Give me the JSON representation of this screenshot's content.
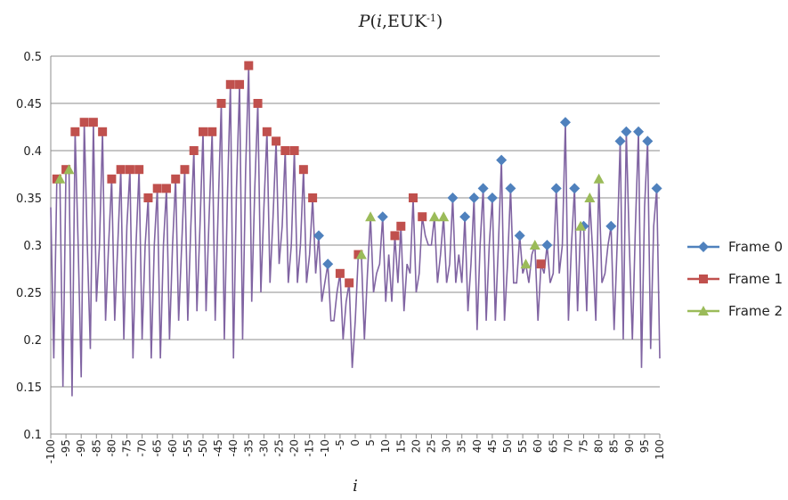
{
  "chart_data": {
    "type": "line",
    "title": [
      "P",
      "(",
      "i",
      ",EUK",
      "-1",
      ")"
    ],
    "x_label": "i",
    "xlim": [
      -100,
      100
    ],
    "xticks": [
      -100,
      -95,
      -90,
      -85,
      -80,
      -75,
      -70,
      -65,
      -60,
      -55,
      -50,
      -45,
      -40,
      -35,
      -30,
      -25,
      -20,
      -15,
      -10,
      -5,
      0,
      5,
      10,
      15,
      20,
      25,
      30,
      35,
      40,
      45,
      50,
      55,
      60,
      65,
      70,
      75,
      80,
      85,
      90,
      95,
      100
    ],
    "ylim": [
      0.1,
      0.5
    ],
    "yticks": [
      0.1,
      0.15,
      0.2,
      0.25,
      0.3,
      0.35,
      0.4,
      0.45,
      0.5
    ],
    "grid": true,
    "legend": "right",
    "series": [
      {
        "color": "#8064a2",
        "line": true,
        "x": [
          -100,
          -99,
          -98,
          -97,
          -96,
          -95,
          -94,
          -93,
          -92,
          -91,
          -90,
          -89,
          -88,
          -87,
          -86,
          -85,
          -84,
          -83,
          -82,
          -81,
          -80,
          -79,
          -78,
          -77,
          -76,
          -75,
          -74,
          -73,
          -72,
          -71,
          -70,
          -69,
          -68,
          -67,
          -66,
          -65,
          -64,
          -63,
          -62,
          -61,
          -60,
          -59,
          -58,
          -57,
          -56,
          -55,
          -54,
          -53,
          -52,
          -51,
          -50,
          -49,
          -48,
          -47,
          -46,
          -45,
          -44,
          -43,
          -42,
          -41,
          -40,
          -39,
          -38,
          -37,
          -36,
          -35,
          -34,
          -33,
          -32,
          -31,
          -30,
          -29,
          -28,
          -27,
          -26,
          -25,
          -24,
          -23,
          -22,
          -21,
          -20,
          -19,
          -18,
          -17,
          -16,
          -15,
          -14,
          -13,
          -12,
          -11,
          -10,
          -9,
          -8,
          -7,
          -6,
          -5,
          -4,
          -3,
          -2,
          -1,
          0,
          1,
          2,
          3,
          4,
          5,
          6,
          7,
          8,
          9,
          10,
          11,
          12,
          13,
          14,
          15,
          16,
          17,
          18,
          19,
          20,
          21,
          22,
          23,
          24,
          25,
          26,
          27,
          28,
          29,
          30,
          31,
          32,
          33,
          34,
          35,
          36,
          37,
          38,
          39,
          40,
          41,
          42,
          43,
          44,
          45,
          46,
          47,
          48,
          49,
          50,
          51,
          52,
          53,
          54,
          55,
          56,
          57,
          58,
          59,
          60,
          61,
          62,
          63,
          64,
          65,
          66,
          67,
          68,
          69,
          70,
          71,
          72,
          73,
          74,
          75,
          76,
          77,
          78,
          79,
          80,
          81,
          82,
          83,
          84,
          85,
          86,
          87,
          88,
          89,
          90,
          91,
          92,
          93,
          94,
          95,
          96,
          97,
          98,
          99,
          100
        ],
        "values": [
          0.34,
          0.18,
          0.37,
          0.37,
          0.15,
          0.38,
          0.38,
          0.14,
          0.42,
          0.3,
          0.16,
          0.43,
          0.3,
          0.19,
          0.43,
          0.24,
          0.3,
          0.42,
          0.22,
          0.3,
          0.37,
          0.22,
          0.3,
          0.38,
          0.2,
          0.32,
          0.38,
          0.18,
          0.3,
          0.38,
          0.2,
          0.3,
          0.35,
          0.18,
          0.3,
          0.36,
          0.18,
          0.3,
          0.36,
          0.2,
          0.3,
          0.37,
          0.22,
          0.3,
          0.38,
          0.22,
          0.32,
          0.4,
          0.23,
          0.32,
          0.42,
          0.23,
          0.33,
          0.42,
          0.22,
          0.34,
          0.45,
          0.2,
          0.35,
          0.47,
          0.18,
          0.36,
          0.47,
          0.2,
          0.38,
          0.49,
          0.24,
          0.36,
          0.45,
          0.25,
          0.34,
          0.42,
          0.26,
          0.33,
          0.41,
          0.28,
          0.32,
          0.4,
          0.26,
          0.3,
          0.4,
          0.26,
          0.3,
          0.38,
          0.26,
          0.29,
          0.35,
          0.27,
          0.31,
          0.24,
          0.26,
          0.28,
          0.22,
          0.22,
          0.25,
          0.27,
          0.2,
          0.24,
          0.26,
          0.17,
          0.22,
          0.29,
          0.29,
          0.2,
          0.27,
          0.33,
          0.25,
          0.27,
          0.28,
          0.33,
          0.24,
          0.29,
          0.24,
          0.31,
          0.26,
          0.32,
          0.23,
          0.28,
          0.27,
          0.35,
          0.25,
          0.27,
          0.33,
          0.31,
          0.3,
          0.3,
          0.33,
          0.26,
          0.29,
          0.33,
          0.26,
          0.28,
          0.35,
          0.26,
          0.29,
          0.26,
          0.33,
          0.23,
          0.28,
          0.35,
          0.21,
          0.3,
          0.36,
          0.22,
          0.3,
          0.35,
          0.22,
          0.3,
          0.39,
          0.22,
          0.28,
          0.36,
          0.26,
          0.26,
          0.31,
          0.27,
          0.28,
          0.26,
          0.29,
          0.3,
          0.22,
          0.28,
          0.27,
          0.3,
          0.26,
          0.27,
          0.36,
          0.27,
          0.3,
          0.43,
          0.22,
          0.3,
          0.36,
          0.23,
          0.32,
          0.32,
          0.23,
          0.35,
          0.29,
          0.22,
          0.37,
          0.26,
          0.27,
          0.3,
          0.32,
          0.21,
          0.3,
          0.41,
          0.2,
          0.42,
          0.3,
          0.2,
          0.32,
          0.42,
          0.17,
          0.34,
          0.41,
          0.19,
          0.32,
          0.36,
          0.18
        ]
      },
      {
        "name": "Frame 0",
        "color": "#4f81bd",
        "marker": "diamond",
        "line": false,
        "x": [
          -12,
          -9,
          9,
          32,
          36,
          39,
          42,
          45,
          48,
          51,
          54,
          63,
          66,
          69,
          72,
          75,
          84,
          87,
          89,
          93,
          96,
          99
        ],
        "values": [
          0.31,
          0.28,
          0.33,
          0.35,
          0.33,
          0.35,
          0.36,
          0.35,
          0.39,
          0.36,
          0.31,
          0.3,
          0.36,
          0.43,
          0.36,
          0.32,
          0.32,
          0.41,
          0.42,
          0.42,
          0.41,
          0.36
        ]
      },
      {
        "name": "Frame 1",
        "color": "#c0504d",
        "marker": "square",
        "line": false,
        "x": [
          -98,
          -95,
          -92,
          -89,
          -86,
          -83,
          -80,
          -77,
          -74,
          -71,
          -68,
          -65,
          -62,
          -59,
          -56,
          -53,
          -50,
          -47,
          -44,
          -41,
          -38,
          -35,
          -32,
          -29,
          -26,
          -23,
          -20,
          -17,
          -14,
          -5,
          -2,
          1,
          13,
          15,
          19,
          22,
          61
        ],
        "values": [
          0.37,
          0.38,
          0.42,
          0.43,
          0.43,
          0.42,
          0.37,
          0.38,
          0.38,
          0.38,
          0.35,
          0.36,
          0.36,
          0.37,
          0.38,
          0.4,
          0.42,
          0.42,
          0.45,
          0.47,
          0.47,
          0.49,
          0.45,
          0.42,
          0.41,
          0.4,
          0.4,
          0.38,
          0.35,
          0.27,
          0.26,
          0.29,
          0.31,
          0.32,
          0.35,
          0.33,
          0.28
        ]
      },
      {
        "name": "Frame 2",
        "color": "#9bbb59",
        "marker": "triangle",
        "line": false,
        "x": [
          -97,
          -94,
          2,
          5,
          26,
          29,
          56,
          59,
          74,
          77,
          80
        ],
        "values": [
          0.37,
          0.38,
          0.29,
          0.33,
          0.33,
          0.33,
          0.28,
          0.3,
          0.32,
          0.35,
          0.37
        ]
      }
    ]
  }
}
